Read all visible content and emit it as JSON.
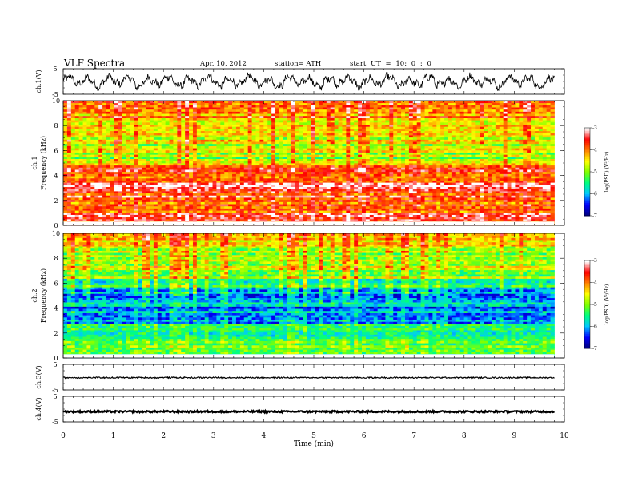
{
  "header": {
    "title": "VLF  Spectra",
    "date": "Apr. 10, 2012",
    "station": "station= ATH",
    "start": "start  UT  =   10: 0  : 0"
  },
  "chart_data": [
    {
      "type": "line",
      "panel": "ch1",
      "ylabel": "ch.1(V)",
      "ylim": [
        -5,
        5
      ],
      "yticks": [
        "5",
        "-5"
      ],
      "xlim": [
        0,
        10
      ],
      "description_values": {
        "approx_min": -3.5,
        "approx_max": 3.5
      }
    },
    {
      "type": "heatmap",
      "panel": "ch1-spectrogram",
      "ylabel_top": "ch.1",
      "ylabel": "Frequency  (kHz)",
      "ylim": [
        0,
        10
      ],
      "yticks": [
        "0",
        "2",
        "4",
        "6",
        "8",
        "10"
      ],
      "xlim": [
        0,
        10
      ],
      "data_end_min": 9.8,
      "colorbar": {
        "label": "log(PSD) (V²/Hz)",
        "range": [
          -7,
          -3
        ],
        "ticks": [
          "-3",
          "-4",
          "-5",
          "-6",
          "-7"
        ]
      },
      "level_profile": [
        {
          "f": 0.0,
          "v": -4.2
        },
        {
          "f": 0.8,
          "v": -3.6
        },
        {
          "f": 1.6,
          "v": -3.8
        },
        {
          "f": 2.4,
          "v": -3.7
        },
        {
          "f": 3.2,
          "v": -3.5
        },
        {
          "f": 4.0,
          "v": -4.0
        },
        {
          "f": 4.8,
          "v": -3.8
        },
        {
          "f": 5.2,
          "v": -4.8
        },
        {
          "f": 6.0,
          "v": -4.9
        },
        {
          "f": 7.0,
          "v": -4.6
        },
        {
          "f": 8.0,
          "v": -4.3
        },
        {
          "f": 9.0,
          "v": -4.1
        },
        {
          "f": 10.0,
          "v": -4.0
        }
      ]
    },
    {
      "type": "heatmap",
      "panel": "ch2-spectrogram",
      "ylabel_top": "ch.2",
      "ylabel": "Frequency  (kHz)",
      "ylim": [
        0,
        10
      ],
      "yticks": [
        "0",
        "2",
        "4",
        "6",
        "8",
        "10"
      ],
      "xlim": [
        0,
        10
      ],
      "data_end_min": 9.8,
      "colorbar": {
        "label": "log(PSD) (V²/Hz)",
        "range": [
          -7,
          -3
        ],
        "ticks": [
          "-3",
          "-4",
          "-5",
          "-6",
          "-7"
        ]
      },
      "level_profile": [
        {
          "f": 0.0,
          "v": -6.3
        },
        {
          "f": 0.5,
          "v": -5.0
        },
        {
          "f": 1.0,
          "v": -5.2
        },
        {
          "f": 1.5,
          "v": -5.6
        },
        {
          "f": 2.5,
          "v": -5.8
        },
        {
          "f": 3.5,
          "v": -6.0
        },
        {
          "f": 4.5,
          "v": -6.2
        },
        {
          "f": 5.5,
          "v": -5.8
        },
        {
          "f": 6.5,
          "v": -5.1
        },
        {
          "f": 8.0,
          "v": -4.8
        },
        {
          "f": 9.0,
          "v": -4.6
        },
        {
          "f": 10.0,
          "v": -4.6
        }
      ]
    },
    {
      "type": "line",
      "panel": "ch3",
      "ylabel": "ch.3(V)",
      "ylim": [
        -5,
        5
      ],
      "yticks": [
        "5",
        "-5"
      ],
      "xlim": [
        0,
        10
      ],
      "description_values": {
        "approx_level": -0.2
      }
    },
    {
      "type": "line",
      "panel": "ch4",
      "ylabel": "ch.4(V)",
      "ylim": [
        -5,
        5
      ],
      "yticks": [
        "5",
        "-5"
      ],
      "xlim": [
        0,
        10
      ],
      "description_values": {
        "approx_level": -1.0
      }
    }
  ],
  "xaxis": {
    "label": "Time  (min)",
    "ticks": [
      "0",
      "1",
      "2",
      "3",
      "4",
      "5",
      "6",
      "7",
      "8",
      "9",
      "10"
    ],
    "range": [
      0,
      10
    ]
  },
  "colors": {
    "colormap": [
      "#000080",
      "#0000ff",
      "#00c8ff",
      "#00ff80",
      "#80ff00",
      "#ffff00",
      "#ff8000",
      "#ff0000",
      "#ffffff"
    ]
  }
}
